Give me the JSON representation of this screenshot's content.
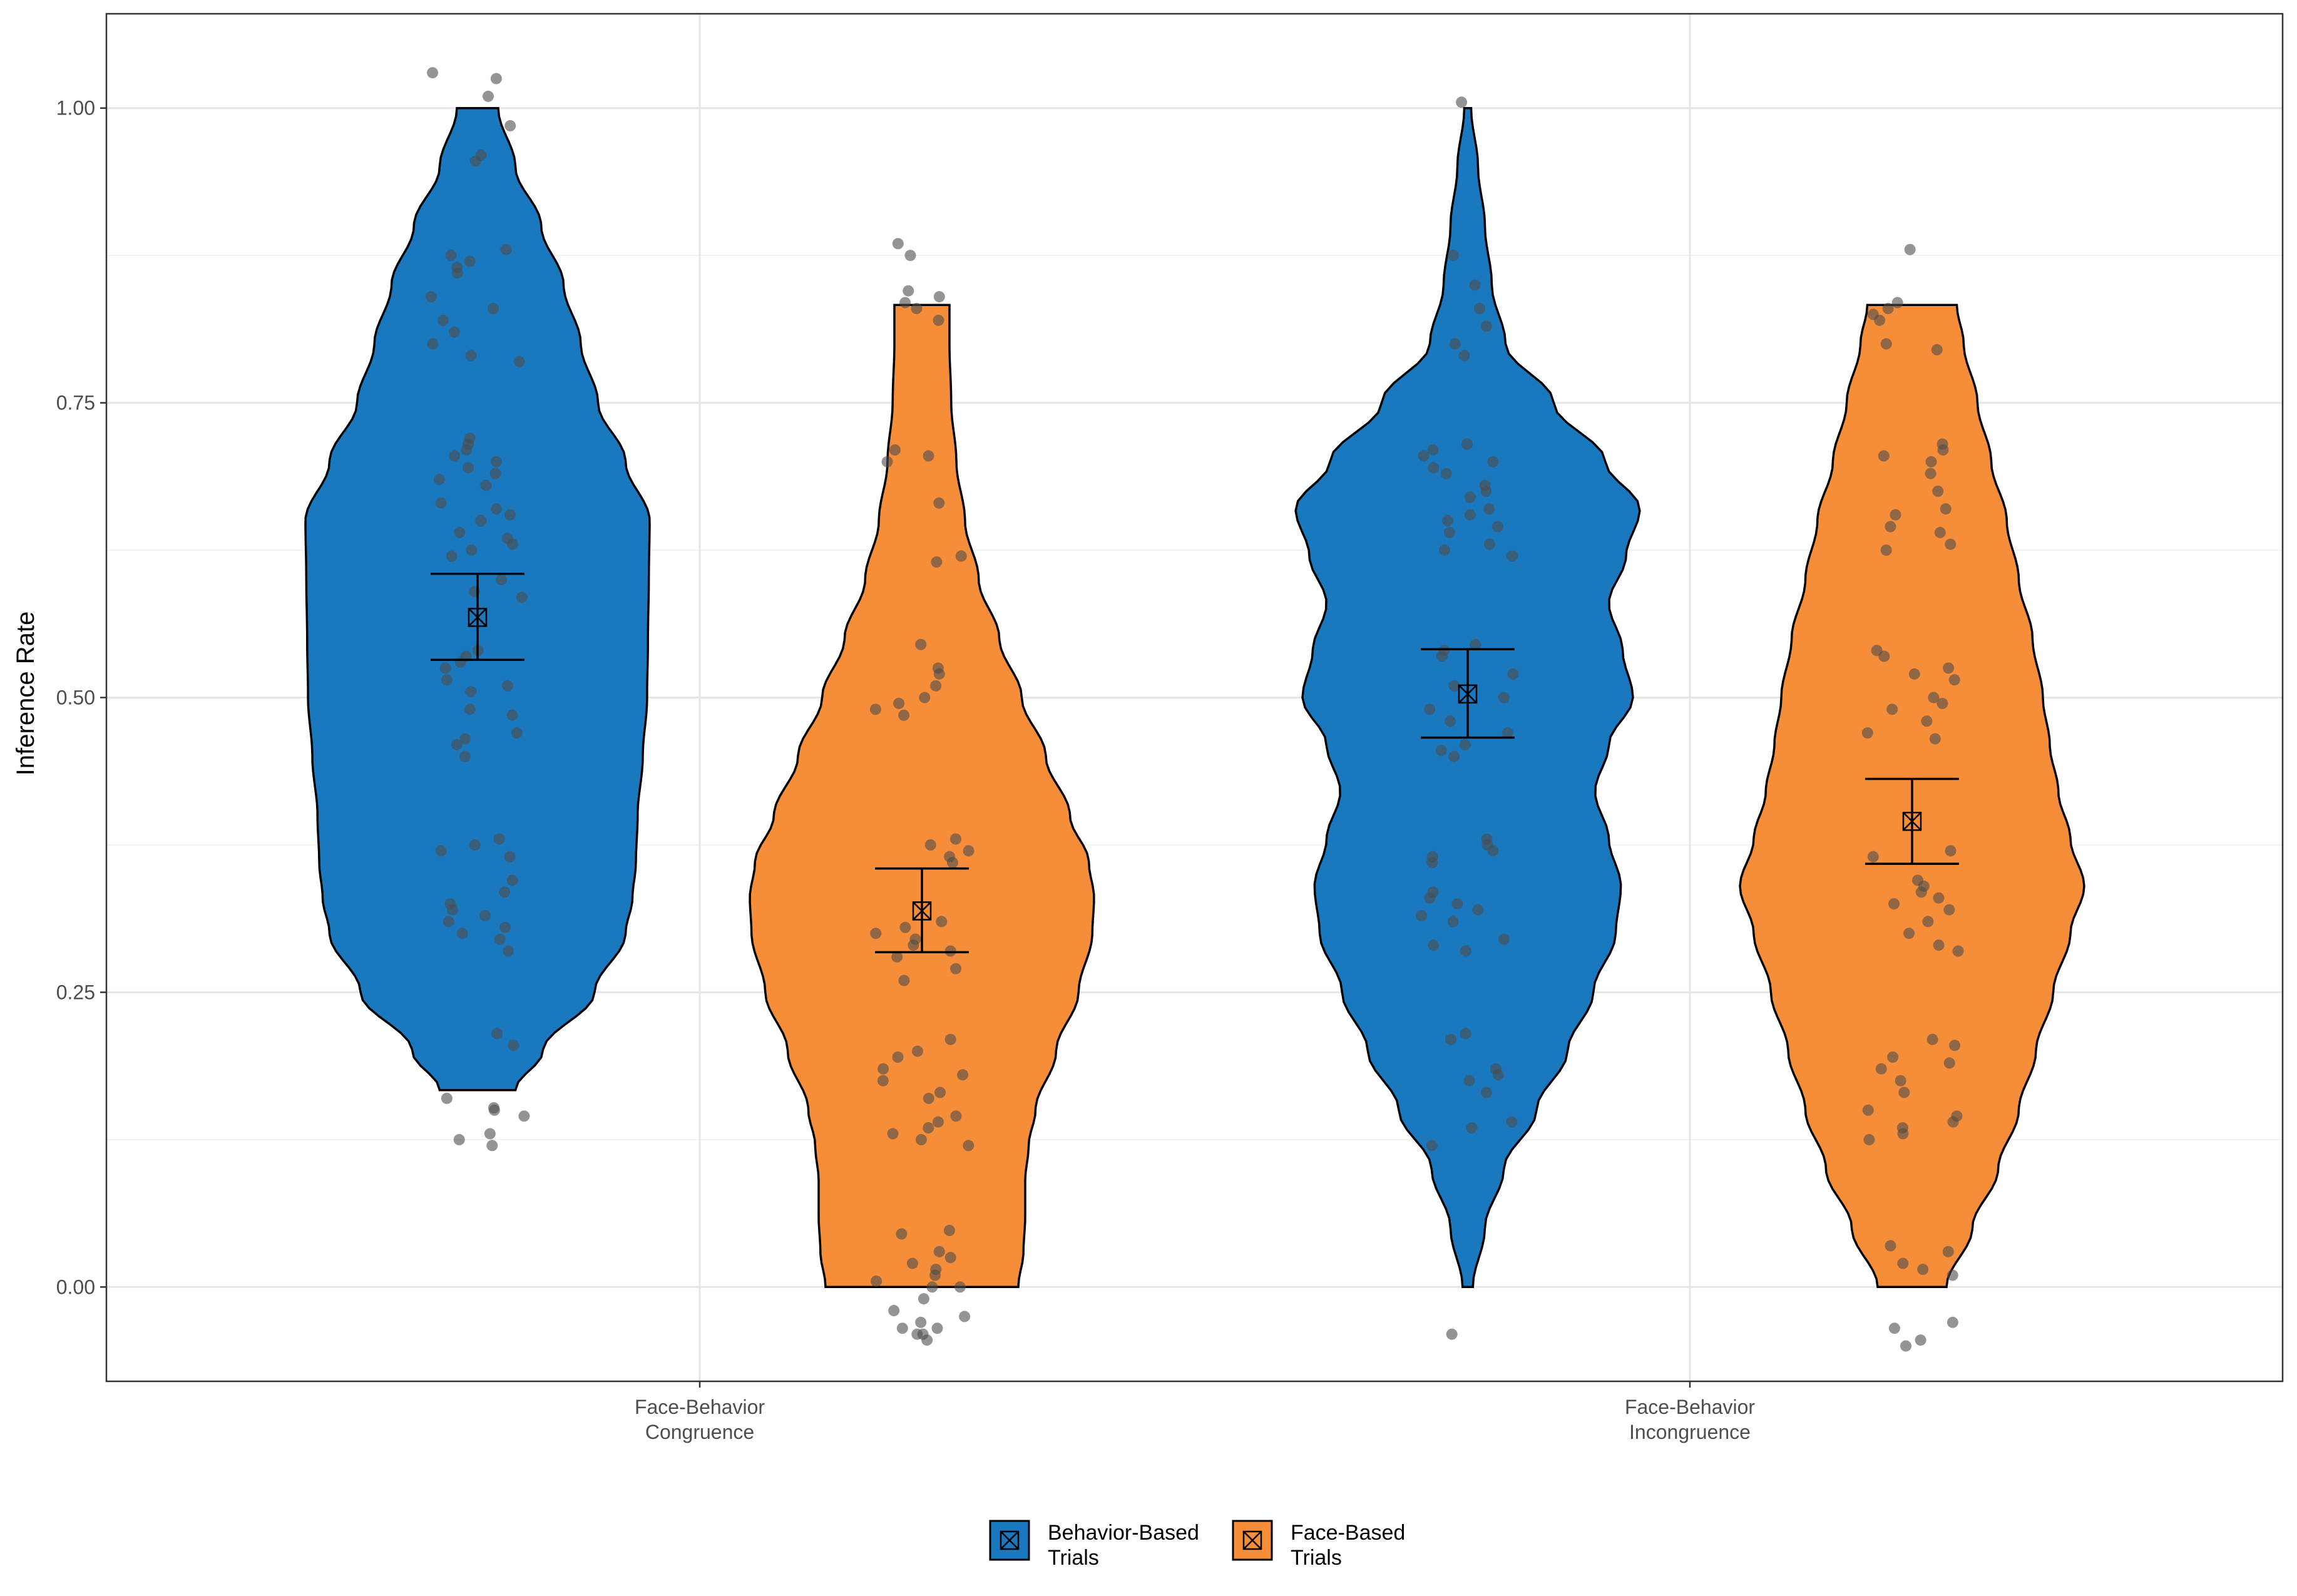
{
  "chart_data": {
    "type": "violin",
    "ylabel": "Inference Rate",
    "xlabel": "",
    "ylim": [
      -0.08,
      1.08
    ],
    "yticks": [
      "0.00",
      "0.25",
      "0.50",
      "0.75",
      "1.00"
    ],
    "grid": true,
    "legend_position": "bottom",
    "categories": [
      {
        "line1": "Face-Behavior",
        "line2": "Congruence"
      },
      {
        "line1": "Face-Behavior",
        "line2": "Incongruence"
      }
    ],
    "series": [
      {
        "name": "Behavior-Based Trials",
        "legend_line1": "Behavior-Based",
        "legend_line2": "Trials",
        "color": "#1a78bf"
      },
      {
        "name": "Face-Based Trials",
        "legend_line1": "Face-Based",
        "legend_line2": "Trials",
        "color": "#f68d39"
      }
    ],
    "groups": [
      {
        "category": 0,
        "series": 0,
        "min": 0.167,
        "max": 1.0,
        "mean": 0.568,
        "ci_low": 0.532,
        "ci_high": 0.605,
        "density": [
          [
            0.167,
            0.22
          ],
          [
            0.2,
            0.38
          ],
          [
            0.25,
            0.68
          ],
          [
            0.3,
            0.86
          ],
          [
            0.33,
            0.9
          ],
          [
            0.36,
            0.92
          ],
          [
            0.4,
            0.93
          ],
          [
            0.45,
            0.96
          ],
          [
            0.5,
            0.985
          ],
          [
            0.55,
            0.99
          ],
          [
            0.6,
            0.995
          ],
          [
            0.65,
            1.0
          ],
          [
            0.7,
            0.86
          ],
          [
            0.75,
            0.7
          ],
          [
            0.8,
            0.6
          ],
          [
            0.85,
            0.5
          ],
          [
            0.9,
            0.37
          ],
          [
            0.95,
            0.22
          ],
          [
            1.0,
            0.12
          ]
        ],
        "points": [
          0.12,
          0.125,
          0.13,
          0.145,
          0.15,
          0.152,
          0.16,
          0.205,
          0.215,
          0.285,
          0.295,
          0.3,
          0.305,
          0.31,
          0.315,
          0.32,
          0.325,
          0.335,
          0.345,
          0.365,
          0.37,
          0.375,
          0.38,
          0.45,
          0.46,
          0.465,
          0.47,
          0.485,
          0.49,
          0.505,
          0.51,
          0.515,
          0.525,
          0.53,
          0.535,
          0.54,
          0.585,
          0.59,
          0.6,
          0.62,
          0.625,
          0.63,
          0.635,
          0.64,
          0.65,
          0.655,
          0.66,
          0.665,
          0.68,
          0.685,
          0.69,
          0.695,
          0.7,
          0.705,
          0.71,
          0.715,
          0.72,
          0.785,
          0.79,
          0.8,
          0.81,
          0.82,
          0.83,
          0.84,
          0.86,
          0.865,
          0.87,
          0.875,
          0.88,
          0.955,
          0.96,
          0.985,
          1.01,
          1.025,
          1.03
        ]
      },
      {
        "category": 0,
        "series": 1,
        "min": 0.0,
        "max": 0.833,
        "mean": 0.319,
        "ci_low": 0.284,
        "ci_high": 0.355,
        "density": [
          [
            0.0,
            0.56
          ],
          [
            0.03,
            0.59
          ],
          [
            0.06,
            0.6
          ],
          [
            0.09,
            0.6
          ],
          [
            0.12,
            0.62
          ],
          [
            0.15,
            0.66
          ],
          [
            0.2,
            0.78
          ],
          [
            0.25,
            0.91
          ],
          [
            0.3,
            0.99
          ],
          [
            0.33,
            1.0
          ],
          [
            0.36,
            0.97
          ],
          [
            0.4,
            0.86
          ],
          [
            0.45,
            0.72
          ],
          [
            0.5,
            0.58
          ],
          [
            0.55,
            0.45
          ],
          [
            0.6,
            0.33
          ],
          [
            0.65,
            0.25
          ],
          [
            0.7,
            0.2
          ],
          [
            0.75,
            0.17
          ],
          [
            0.8,
            0.16
          ],
          [
            0.833,
            0.16
          ]
        ],
        "points": [
          -0.045,
          -0.04,
          -0.04,
          -0.035,
          -0.035,
          -0.03,
          -0.025,
          -0.02,
          -0.01,
          0.0,
          0.0,
          0.005,
          0.01,
          0.015,
          0.02,
          0.025,
          0.03,
          0.045,
          0.048,
          0.12,
          0.125,
          0.13,
          0.135,
          0.14,
          0.145,
          0.16,
          0.165,
          0.175,
          0.18,
          0.185,
          0.195,
          0.2,
          0.21,
          0.26,
          0.27,
          0.28,
          0.285,
          0.29,
          0.295,
          0.3,
          0.305,
          0.31,
          0.36,
          0.365,
          0.37,
          0.375,
          0.38,
          0.485,
          0.49,
          0.495,
          0.5,
          0.51,
          0.52,
          0.525,
          0.545,
          0.615,
          0.62,
          0.665,
          0.7,
          0.705,
          0.71,
          0.82,
          0.83,
          0.835,
          0.84,
          0.845,
          0.875,
          0.885
        ]
      },
      {
        "category": 1,
        "series": 0,
        "min": 0.0,
        "max": 1.0,
        "mean": 0.503,
        "ci_low": 0.466,
        "ci_high": 0.541,
        "density": [
          [
            0.0,
            0.03
          ],
          [
            0.05,
            0.1
          ],
          [
            0.1,
            0.21
          ],
          [
            0.15,
            0.4
          ],
          [
            0.2,
            0.58
          ],
          [
            0.25,
            0.73
          ],
          [
            0.3,
            0.86
          ],
          [
            0.34,
            0.89
          ],
          [
            0.38,
            0.82
          ],
          [
            0.42,
            0.74
          ],
          [
            0.46,
            0.82
          ],
          [
            0.5,
            0.96
          ],
          [
            0.54,
            0.9
          ],
          [
            0.58,
            0.82
          ],
          [
            0.62,
            0.92
          ],
          [
            0.66,
            1.0
          ],
          [
            0.7,
            0.8
          ],
          [
            0.75,
            0.5
          ],
          [
            0.8,
            0.22
          ],
          [
            0.85,
            0.14
          ],
          [
            0.9,
            0.1
          ],
          [
            0.95,
            0.06
          ],
          [
            1.0,
            0.02
          ]
        ],
        "points": [
          -0.04,
          0.12,
          0.135,
          0.14,
          0.165,
          0.175,
          0.18,
          0.185,
          0.21,
          0.215,
          0.285,
          0.29,
          0.295,
          0.31,
          0.315,
          0.32,
          0.325,
          0.33,
          0.335,
          0.36,
          0.365,
          0.37,
          0.375,
          0.38,
          0.45,
          0.455,
          0.46,
          0.47,
          0.48,
          0.49,
          0.5,
          0.51,
          0.52,
          0.535,
          0.54,
          0.545,
          0.62,
          0.625,
          0.63,
          0.64,
          0.645,
          0.65,
          0.655,
          0.66,
          0.67,
          0.675,
          0.68,
          0.69,
          0.695,
          0.7,
          0.705,
          0.71,
          0.715,
          0.79,
          0.8,
          0.815,
          0.83,
          0.85,
          0.875,
          1.005
        ]
      },
      {
        "category": 1,
        "series": 1,
        "min": 0.0,
        "max": 0.833,
        "mean": 0.395,
        "ci_low": 0.359,
        "ci_high": 0.431,
        "density": [
          [
            0.0,
            0.2
          ],
          [
            0.05,
            0.35
          ],
          [
            0.1,
            0.5
          ],
          [
            0.15,
            0.62
          ],
          [
            0.2,
            0.72
          ],
          [
            0.25,
            0.82
          ],
          [
            0.3,
            0.92
          ],
          [
            0.34,
            1.0
          ],
          [
            0.38,
            0.92
          ],
          [
            0.42,
            0.85
          ],
          [
            0.46,
            0.8
          ],
          [
            0.5,
            0.76
          ],
          [
            0.55,
            0.7
          ],
          [
            0.6,
            0.62
          ],
          [
            0.65,
            0.55
          ],
          [
            0.7,
            0.46
          ],
          [
            0.75,
            0.38
          ],
          [
            0.8,
            0.3
          ],
          [
            0.833,
            0.26
          ]
        ],
        "points": [
          -0.05,
          -0.045,
          -0.035,
          -0.03,
          0.01,
          0.015,
          0.02,
          0.03,
          0.035,
          0.125,
          0.13,
          0.135,
          0.14,
          0.145,
          0.15,
          0.165,
          0.175,
          0.185,
          0.19,
          0.195,
          0.205,
          0.21,
          0.285,
          0.29,
          0.3,
          0.31,
          0.32,
          0.325,
          0.33,
          0.335,
          0.34,
          0.345,
          0.365,
          0.37,
          0.465,
          0.47,
          0.48,
          0.49,
          0.495,
          0.5,
          0.515,
          0.52,
          0.525,
          0.535,
          0.54,
          0.625,
          0.63,
          0.64,
          0.645,
          0.655,
          0.66,
          0.675,
          0.69,
          0.7,
          0.705,
          0.71,
          0.715,
          0.795,
          0.8,
          0.82,
          0.825,
          0.83,
          0.835,
          0.88
        ]
      }
    ]
  }
}
